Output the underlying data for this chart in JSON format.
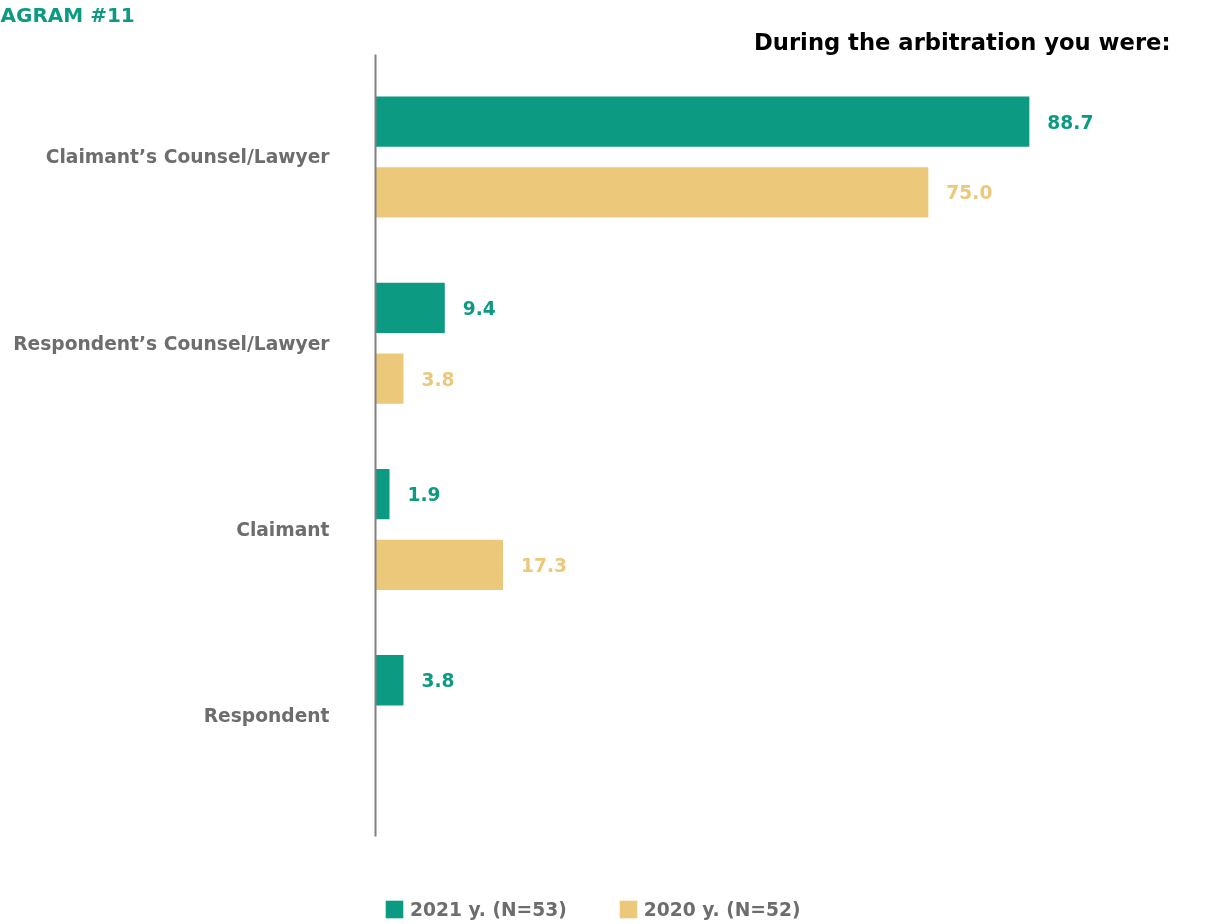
{
  "chart_data": {
    "type": "bar",
    "orientation": "horizontal",
    "title": "During the arbitration you were:",
    "annotations": [
      "AGRAM #11"
    ],
    "categories": [
      "Claimant’s Counsel/Lawyer",
      "Respondent’s Counsel/Lawyer",
      "Claimant",
      "Respondent"
    ],
    "series": [
      {
        "name": "2021 y. (N=53)",
        "color": "#0c9a82",
        "values": [
          88.7,
          9.4,
          1.9,
          3.8
        ],
        "value_labels": [
          "88.7",
          "9.4",
          "1.9",
          "3.8"
        ]
      },
      {
        "name": "2020 y. (N=52)",
        "color": "#ecc97a",
        "values": [
          75.0,
          3.8,
          17.3,
          null
        ],
        "value_labels": [
          "75.0",
          "3.8",
          "17.3",
          null
        ]
      }
    ],
    "legend": "bottom",
    "grid": false
  }
}
